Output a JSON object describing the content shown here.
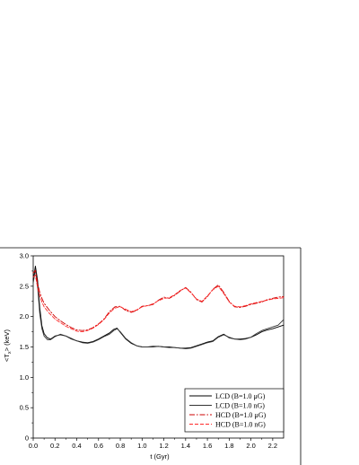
{
  "chart_data": {
    "type": "line",
    "title": "",
    "xlabel": "t (Gyr)",
    "ylabel": "<T",
    "ylabel_sub": "x",
    "ylabel_unit": "> (keV)",
    "xlim": [
      0.0,
      2.3
    ],
    "ylim": [
      0.0,
      3.0
    ],
    "x_ticks": [
      "0.0",
      "0.2",
      "0.4",
      "0.6",
      "0.8",
      "1.0",
      "1.2",
      "1.4",
      "1.6",
      "1.8",
      "2.0",
      "2.2"
    ],
    "y_ticks": [
      "0",
      "0.5",
      "1.0",
      "1.5",
      "2.0",
      "2.5",
      "3.0"
    ],
    "grid": false,
    "legend_position": "bottom-right",
    "series": [
      {
        "name": "LCD (B=1.0 μG)",
        "color": "#000000",
        "style": "solid",
        "x": [
          0.0,
          0.02,
          0.04,
          0.06,
          0.08,
          0.1,
          0.13,
          0.16,
          0.2,
          0.25,
          0.3,
          0.35,
          0.4,
          0.45,
          0.5,
          0.55,
          0.6,
          0.65,
          0.7,
          0.74,
          0.77,
          0.8,
          0.85,
          0.9,
          0.95,
          1.0,
          1.05,
          1.1,
          1.15,
          1.2,
          1.25,
          1.3,
          1.35,
          1.4,
          1.45,
          1.5,
          1.55,
          1.6,
          1.65,
          1.7,
          1.75,
          1.8,
          1.85,
          1.9,
          1.95,
          2.0,
          2.05,
          2.1,
          2.15,
          2.2,
          2.25,
          2.3
        ],
        "y": [
          2.6,
          2.83,
          2.6,
          2.15,
          1.85,
          1.72,
          1.65,
          1.63,
          1.68,
          1.7,
          1.68,
          1.64,
          1.6,
          1.58,
          1.57,
          1.59,
          1.63,
          1.68,
          1.73,
          1.79,
          1.81,
          1.74,
          1.63,
          1.56,
          1.52,
          1.5,
          1.5,
          1.51,
          1.51,
          1.5,
          1.5,
          1.49,
          1.48,
          1.48,
          1.49,
          1.52,
          1.55,
          1.58,
          1.6,
          1.67,
          1.71,
          1.65,
          1.63,
          1.63,
          1.64,
          1.66,
          1.7,
          1.75,
          1.78,
          1.8,
          1.83,
          1.86
        ]
      },
      {
        "name": "LCD (B=1.0 nG)",
        "color": "#333333",
        "style": "solid",
        "x": [
          0.0,
          0.02,
          0.04,
          0.06,
          0.08,
          0.1,
          0.13,
          0.16,
          0.2,
          0.25,
          0.3,
          0.35,
          0.4,
          0.45,
          0.5,
          0.55,
          0.6,
          0.65,
          0.7,
          0.74,
          0.77,
          0.8,
          0.85,
          0.9,
          0.95,
          1.0,
          1.05,
          1.1,
          1.15,
          1.2,
          1.25,
          1.3,
          1.35,
          1.4,
          1.45,
          1.5,
          1.55,
          1.6,
          1.65,
          1.7,
          1.75,
          1.8,
          1.85,
          1.9,
          1.95,
          2.0,
          2.05,
          2.1,
          2.15,
          2.2,
          2.25,
          2.3
        ],
        "y": [
          2.55,
          2.78,
          2.5,
          2.05,
          1.8,
          1.68,
          1.62,
          1.62,
          1.67,
          1.71,
          1.68,
          1.63,
          1.6,
          1.57,
          1.56,
          1.58,
          1.62,
          1.67,
          1.71,
          1.77,
          1.8,
          1.75,
          1.64,
          1.57,
          1.52,
          1.5,
          1.5,
          1.5,
          1.51,
          1.5,
          1.49,
          1.49,
          1.48,
          1.47,
          1.48,
          1.51,
          1.54,
          1.57,
          1.59,
          1.66,
          1.7,
          1.66,
          1.63,
          1.62,
          1.63,
          1.66,
          1.72,
          1.77,
          1.8,
          1.83,
          1.86,
          1.95
        ]
      },
      {
        "name": "HCD (B=1.0 μG)",
        "color": "#cc0000",
        "style": "dashdot",
        "x": [
          0.0,
          0.02,
          0.04,
          0.06,
          0.08,
          0.1,
          0.15,
          0.2,
          0.25,
          0.3,
          0.35,
          0.4,
          0.45,
          0.5,
          0.55,
          0.6,
          0.65,
          0.7,
          0.75,
          0.8,
          0.85,
          0.9,
          0.95,
          1.0,
          1.05,
          1.1,
          1.15,
          1.2,
          1.25,
          1.3,
          1.35,
          1.4,
          1.45,
          1.5,
          1.55,
          1.6,
          1.65,
          1.7,
          1.75,
          1.8,
          1.85,
          1.9,
          1.95,
          2.0,
          2.05,
          2.1,
          2.15,
          2.2,
          2.25,
          2.3
        ],
        "y": [
          2.72,
          2.76,
          2.55,
          2.4,
          2.3,
          2.22,
          2.1,
          2.0,
          1.93,
          1.87,
          1.82,
          1.78,
          1.77,
          1.78,
          1.82,
          1.88,
          1.96,
          2.08,
          2.16,
          2.17,
          2.1,
          2.07,
          2.1,
          2.17,
          2.18,
          2.2,
          2.27,
          2.32,
          2.3,
          2.35,
          2.42,
          2.48,
          2.4,
          2.28,
          2.24,
          2.33,
          2.45,
          2.52,
          2.4,
          2.25,
          2.16,
          2.15,
          2.17,
          2.2,
          2.22,
          2.24,
          2.28,
          2.3,
          2.32,
          2.33
        ]
      },
      {
        "name": "HCD (B=1.0 nG)",
        "color": "#ff2a2a",
        "style": "dashed",
        "x": [
          0.0,
          0.02,
          0.04,
          0.06,
          0.08,
          0.1,
          0.15,
          0.2,
          0.25,
          0.3,
          0.35,
          0.4,
          0.45,
          0.5,
          0.55,
          0.6,
          0.65,
          0.7,
          0.75,
          0.8,
          0.85,
          0.9,
          0.95,
          1.0,
          1.05,
          1.1,
          1.15,
          1.2,
          1.25,
          1.3,
          1.35,
          1.4,
          1.45,
          1.5,
          1.55,
          1.6,
          1.65,
          1.7,
          1.75,
          1.8,
          1.85,
          1.9,
          1.95,
          2.0,
          2.05,
          2.1,
          2.15,
          2.2,
          2.25,
          2.3
        ],
        "y": [
          2.65,
          2.68,
          2.48,
          2.34,
          2.24,
          2.16,
          2.05,
          1.96,
          1.9,
          1.84,
          1.8,
          1.76,
          1.75,
          1.77,
          1.81,
          1.87,
          1.95,
          2.06,
          2.14,
          2.16,
          2.12,
          2.08,
          2.11,
          2.16,
          2.18,
          2.21,
          2.26,
          2.3,
          2.31,
          2.36,
          2.43,
          2.47,
          2.39,
          2.29,
          2.25,
          2.34,
          2.44,
          2.5,
          2.38,
          2.24,
          2.17,
          2.16,
          2.18,
          2.21,
          2.23,
          2.25,
          2.27,
          2.29,
          2.3,
          2.31
        ]
      }
    ]
  }
}
